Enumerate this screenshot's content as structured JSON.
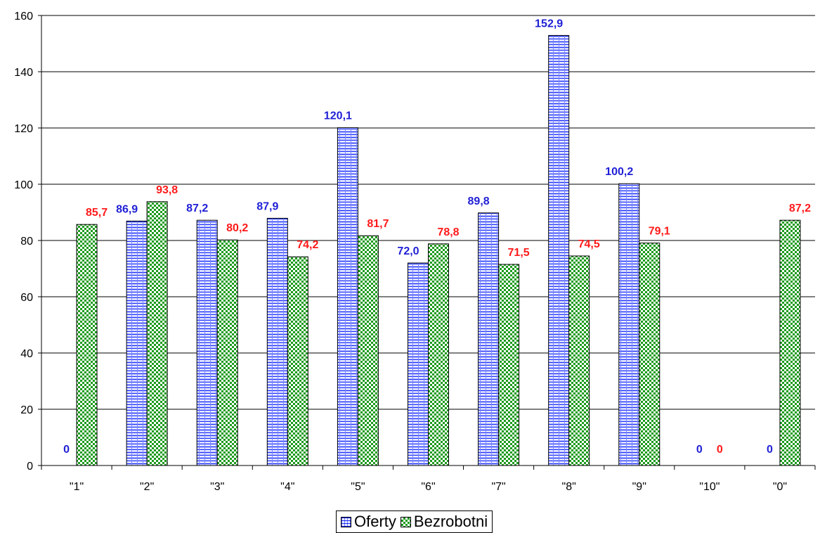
{
  "chart_data": {
    "type": "bar",
    "categories": [
      "\"1\"",
      "\"2\"",
      "\"3\"",
      "\"4\"",
      "\"5\"",
      "\"6\"",
      "\"7\"",
      "\"8\"",
      "\"9\"",
      "\"10\"",
      "\"0\""
    ],
    "series": [
      {
        "name": "Oferty",
        "values": [
          0,
          86.9,
          87.2,
          87.9,
          120.1,
          72.0,
          89.8,
          152.9,
          100.2,
          0,
          0
        ],
        "labels": [
          "0",
          "86,9",
          "87,2",
          "87,9",
          "120,1",
          "72,0",
          "89,8",
          "152,9",
          "100,2",
          "0",
          "0"
        ],
        "color": "#0000ff",
        "fill": "#e8ecff",
        "label_color": "#1f1fd6"
      },
      {
        "name": "Bezrobotni",
        "values": [
          85.7,
          93.8,
          80.2,
          74.2,
          81.7,
          78.8,
          71.5,
          74.5,
          79.1,
          0,
          87.2
        ],
        "labels": [
          "85,7",
          "93,8",
          "80,2",
          "74,2",
          "81,7",
          "78,8",
          "71,5",
          "74,5",
          "79,1",
          "0",
          "87,2"
        ],
        "color": "#1a9a1a",
        "fill": "#ffffff",
        "label_color": "#ff1a1a"
      }
    ],
    "title": "",
    "xlabel": "",
    "ylabel": "",
    "ylim": [
      0,
      160
    ],
    "yticks": [
      0,
      20,
      40,
      60,
      80,
      100,
      120,
      140,
      160
    ],
    "grid": true,
    "legend_position": "bottom"
  },
  "legend": {
    "items": [
      {
        "name": "Oferty"
      },
      {
        "name": "Bezrobotni"
      }
    ]
  }
}
